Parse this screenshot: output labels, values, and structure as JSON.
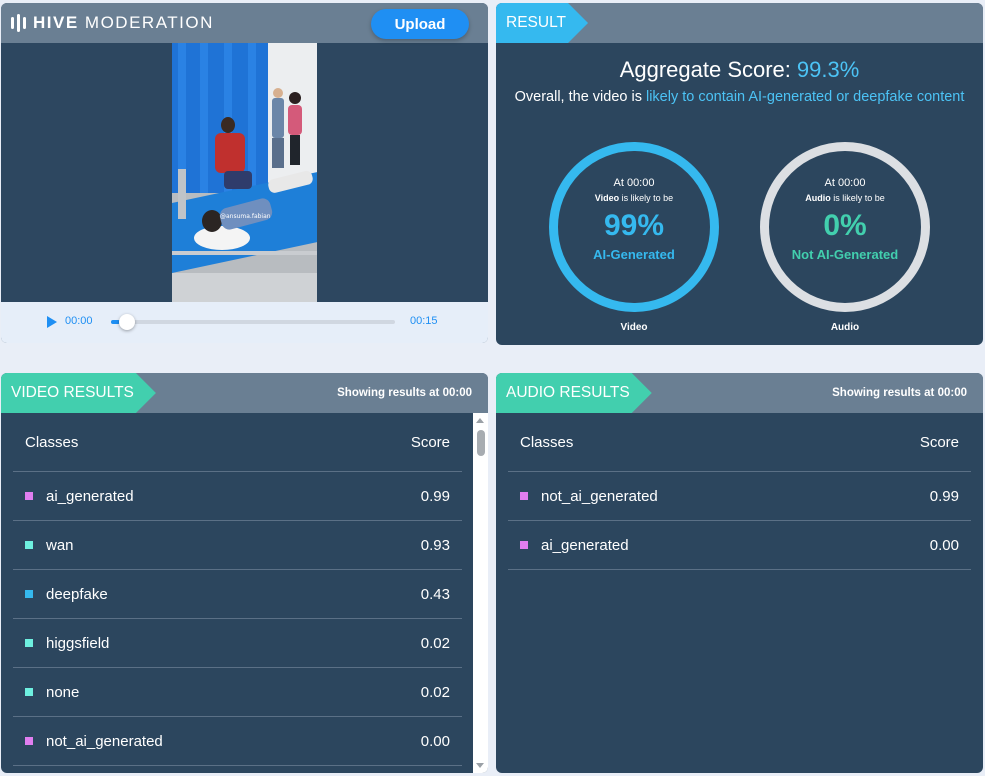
{
  "brand": {
    "bold": "HIVE",
    "rest": "MODERATION"
  },
  "upload_label": "Upload",
  "player": {
    "current_time": "00:00",
    "duration": "00:15",
    "progress": 0.03
  },
  "video_watermark": "@ansuma.fabian",
  "result": {
    "tag": "RESULT",
    "aggregate_label": "Aggregate Score:",
    "aggregate_value": "99.3%",
    "overall_prefix": "Overall, the video is",
    "overall_highlight": "likely to contain AI-generated or deepfake content",
    "video": {
      "at": "At 00:00",
      "subject": "Video",
      "likely": "is likely to be",
      "percent": "99%",
      "label": "AI-Generated",
      "caption": "Video"
    },
    "audio": {
      "at": "At 00:00",
      "subject": "Audio",
      "likely": "is likely to be",
      "percent": "0%",
      "label": "Not AI-Generated",
      "caption": "Audio"
    }
  },
  "video_results": {
    "tag": "VIDEO RESULTS",
    "showing_prefix": "Showing results at",
    "showing_time": "00:00",
    "col_classes": "Classes",
    "col_score": "Score",
    "rows": [
      {
        "cls": "ai_generated",
        "score": "0.99",
        "color": "#e07ef0"
      },
      {
        "cls": "wan",
        "score": "0.93",
        "color": "#6ef0e0"
      },
      {
        "cls": "deepfake",
        "score": "0.43",
        "color": "#35b9ef"
      },
      {
        "cls": "higgsfield",
        "score": "0.02",
        "color": "#6ef0e0"
      },
      {
        "cls": "none",
        "score": "0.02",
        "color": "#6ef0e0"
      },
      {
        "cls": "not_ai_generated",
        "score": "0.00",
        "color": "#e07ef0"
      }
    ]
  },
  "audio_results": {
    "tag": "AUDIO RESULTS",
    "showing_prefix": "Showing results at",
    "showing_time": "00:00",
    "col_classes": "Classes",
    "col_score": "Score",
    "rows": [
      {
        "cls": "not_ai_generated",
        "score": "0.99",
        "color": "#e07ef0"
      },
      {
        "cls": "ai_generated",
        "score": "0.00",
        "color": "#e07ef0"
      }
    ]
  }
}
